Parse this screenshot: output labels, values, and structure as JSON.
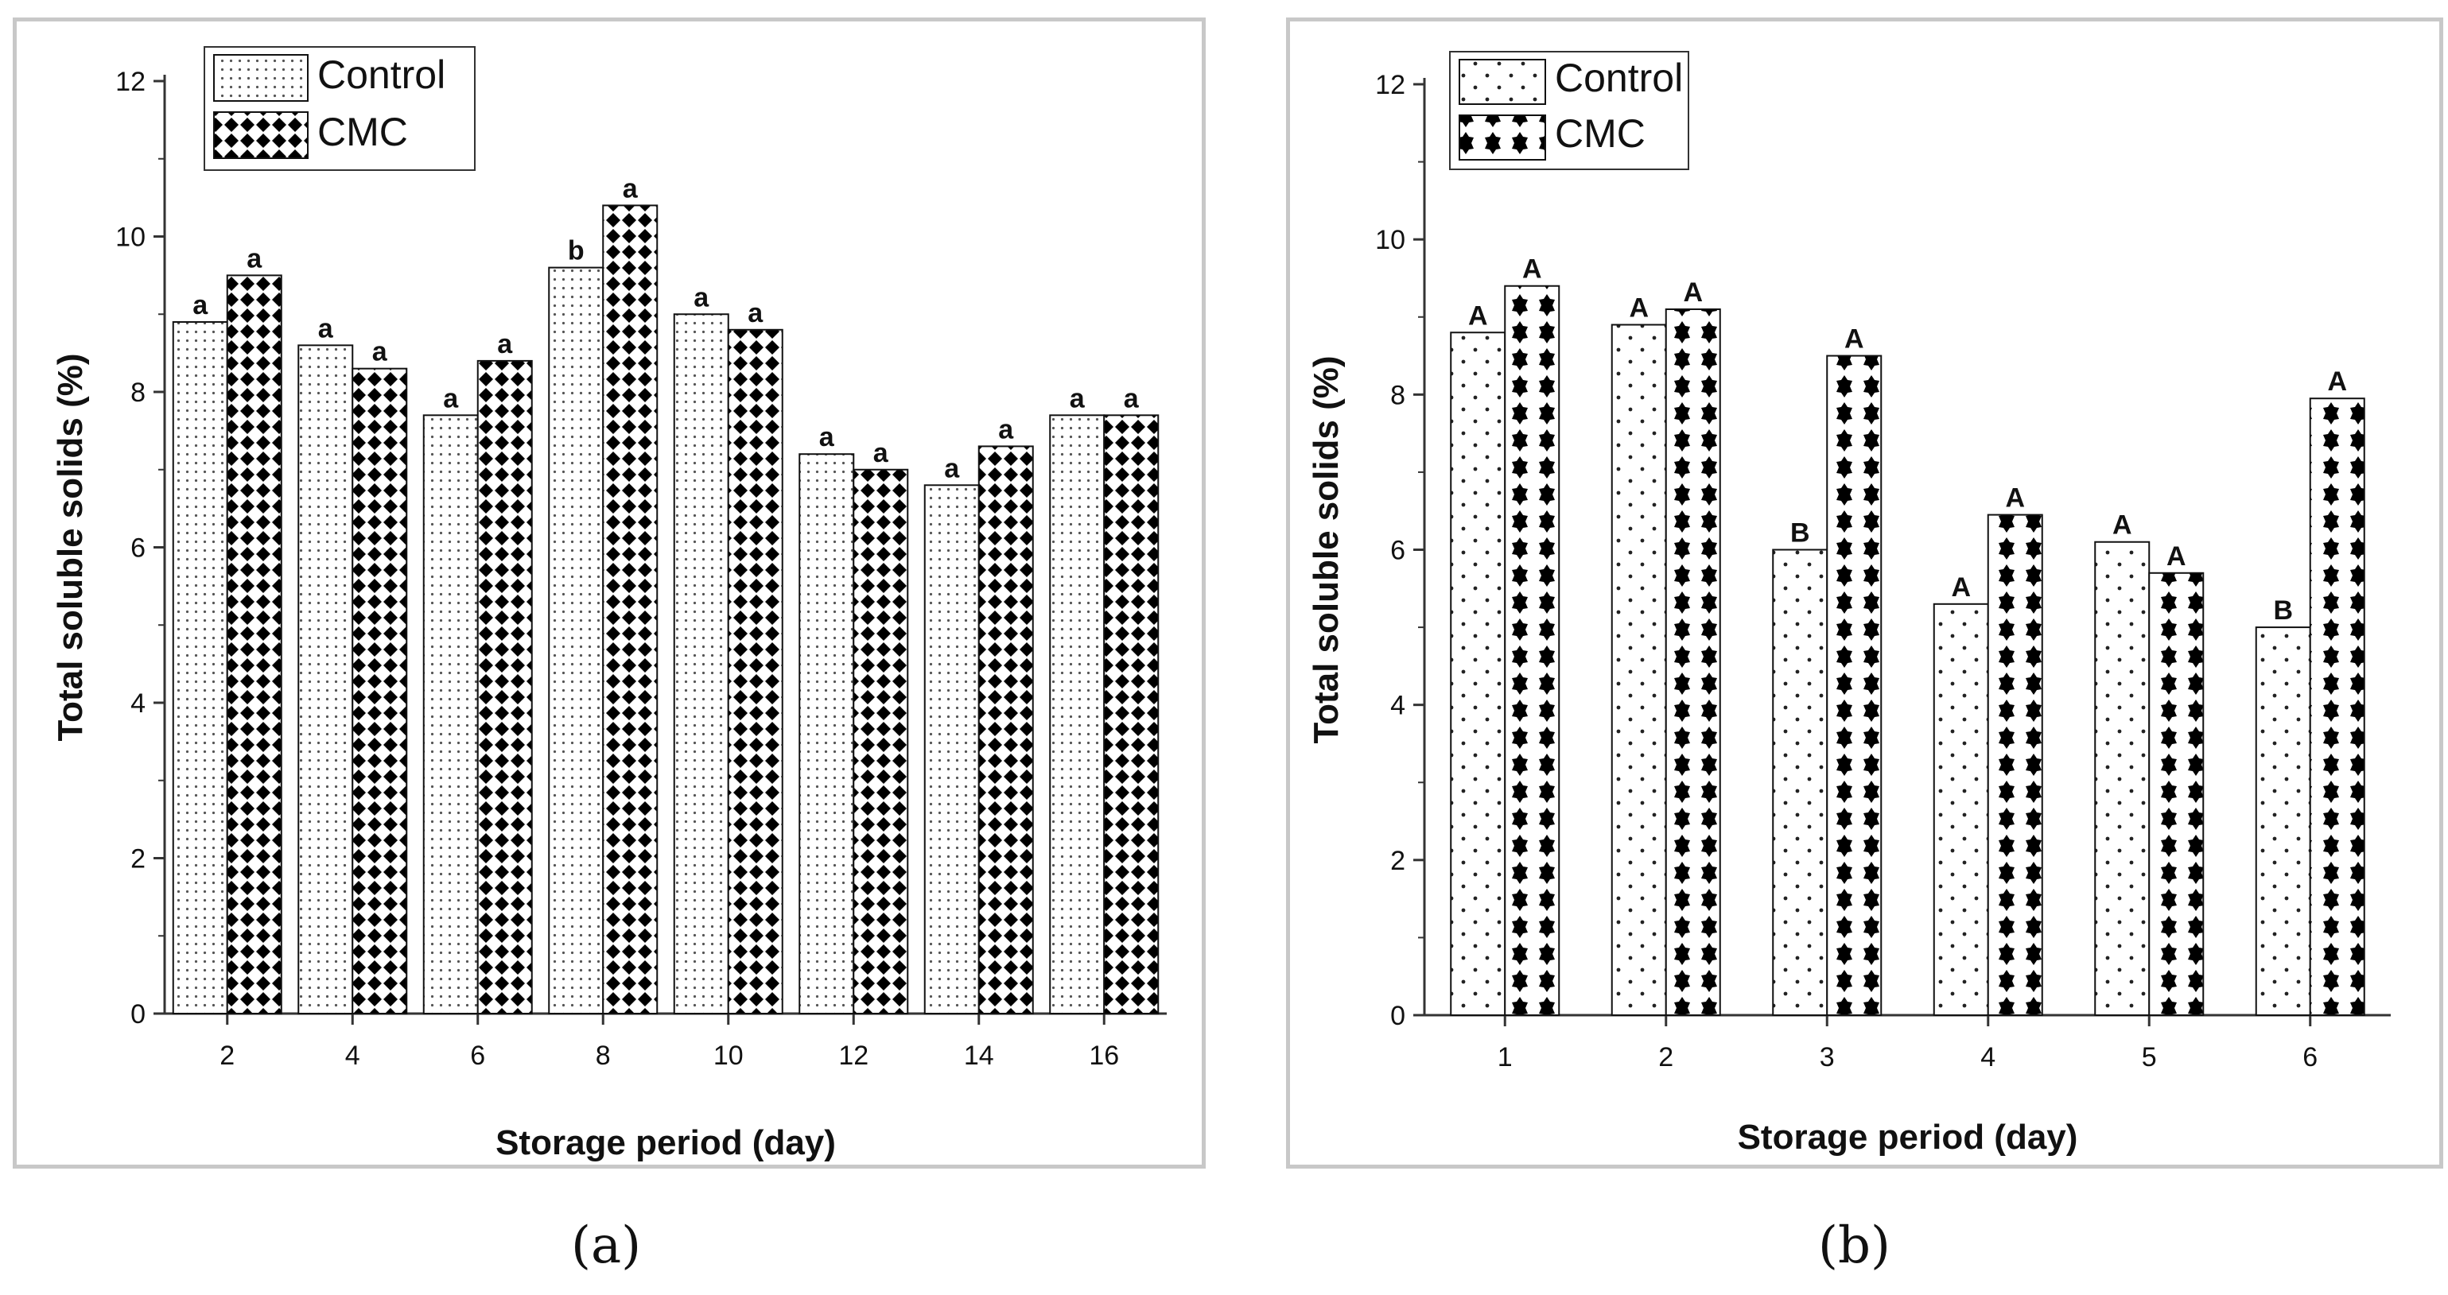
{
  "captions": {
    "a": "(a)",
    "b": "(b)"
  },
  "chart_data": [
    {
      "type": "bar",
      "panel": "a",
      "title": "",
      "xlabel": "Storage period (day)",
      "ylabel": "Total soluble solids (%)",
      "ylim": [
        0,
        12
      ],
      "yticks": [
        0,
        2,
        4,
        6,
        8,
        10,
        12
      ],
      "categories": [
        "2",
        "4",
        "6",
        "8",
        "10",
        "12",
        "14",
        "16"
      ],
      "series": [
        {
          "name": "Control",
          "values": [
            8.9,
            8.6,
            7.7,
            9.6,
            9.0,
            7.2,
            6.8,
            7.7
          ],
          "letters": [
            "a",
            "a",
            "a",
            "b",
            "a",
            "a",
            "a",
            "a"
          ]
        },
        {
          "name": "CMC",
          "values": [
            9.5,
            8.3,
            8.4,
            10.4,
            8.8,
            7.0,
            7.3,
            7.7
          ],
          "letters": [
            "a",
            "a",
            "a",
            "a",
            "a",
            "a",
            "a",
            "a"
          ]
        }
      ],
      "legend": "top-left",
      "grid": false
    },
    {
      "type": "bar",
      "panel": "b",
      "title": "",
      "xlabel": "Storage period (day)",
      "ylabel": "Total soluble solids (%)",
      "ylim": [
        0,
        12
      ],
      "yticks": [
        0,
        2,
        4,
        6,
        8,
        10,
        12
      ],
      "categories": [
        "1",
        "2",
        "3",
        "4",
        "5",
        "6"
      ],
      "series": [
        {
          "name": "Control",
          "values": [
            8.8,
            8.9,
            6.0,
            5.3,
            6.1,
            5.0
          ],
          "letters": [
            "A",
            "A",
            "B",
            "A",
            "A",
            "B"
          ]
        },
        {
          "name": "CMC",
          "values": [
            9.4,
            9.1,
            8.5,
            6.45,
            5.7,
            7.95
          ],
          "letters": [
            "A",
            "A",
            "A",
            "A",
            "A",
            "A"
          ]
        }
      ],
      "legend": "top-left",
      "grid": false
    }
  ]
}
